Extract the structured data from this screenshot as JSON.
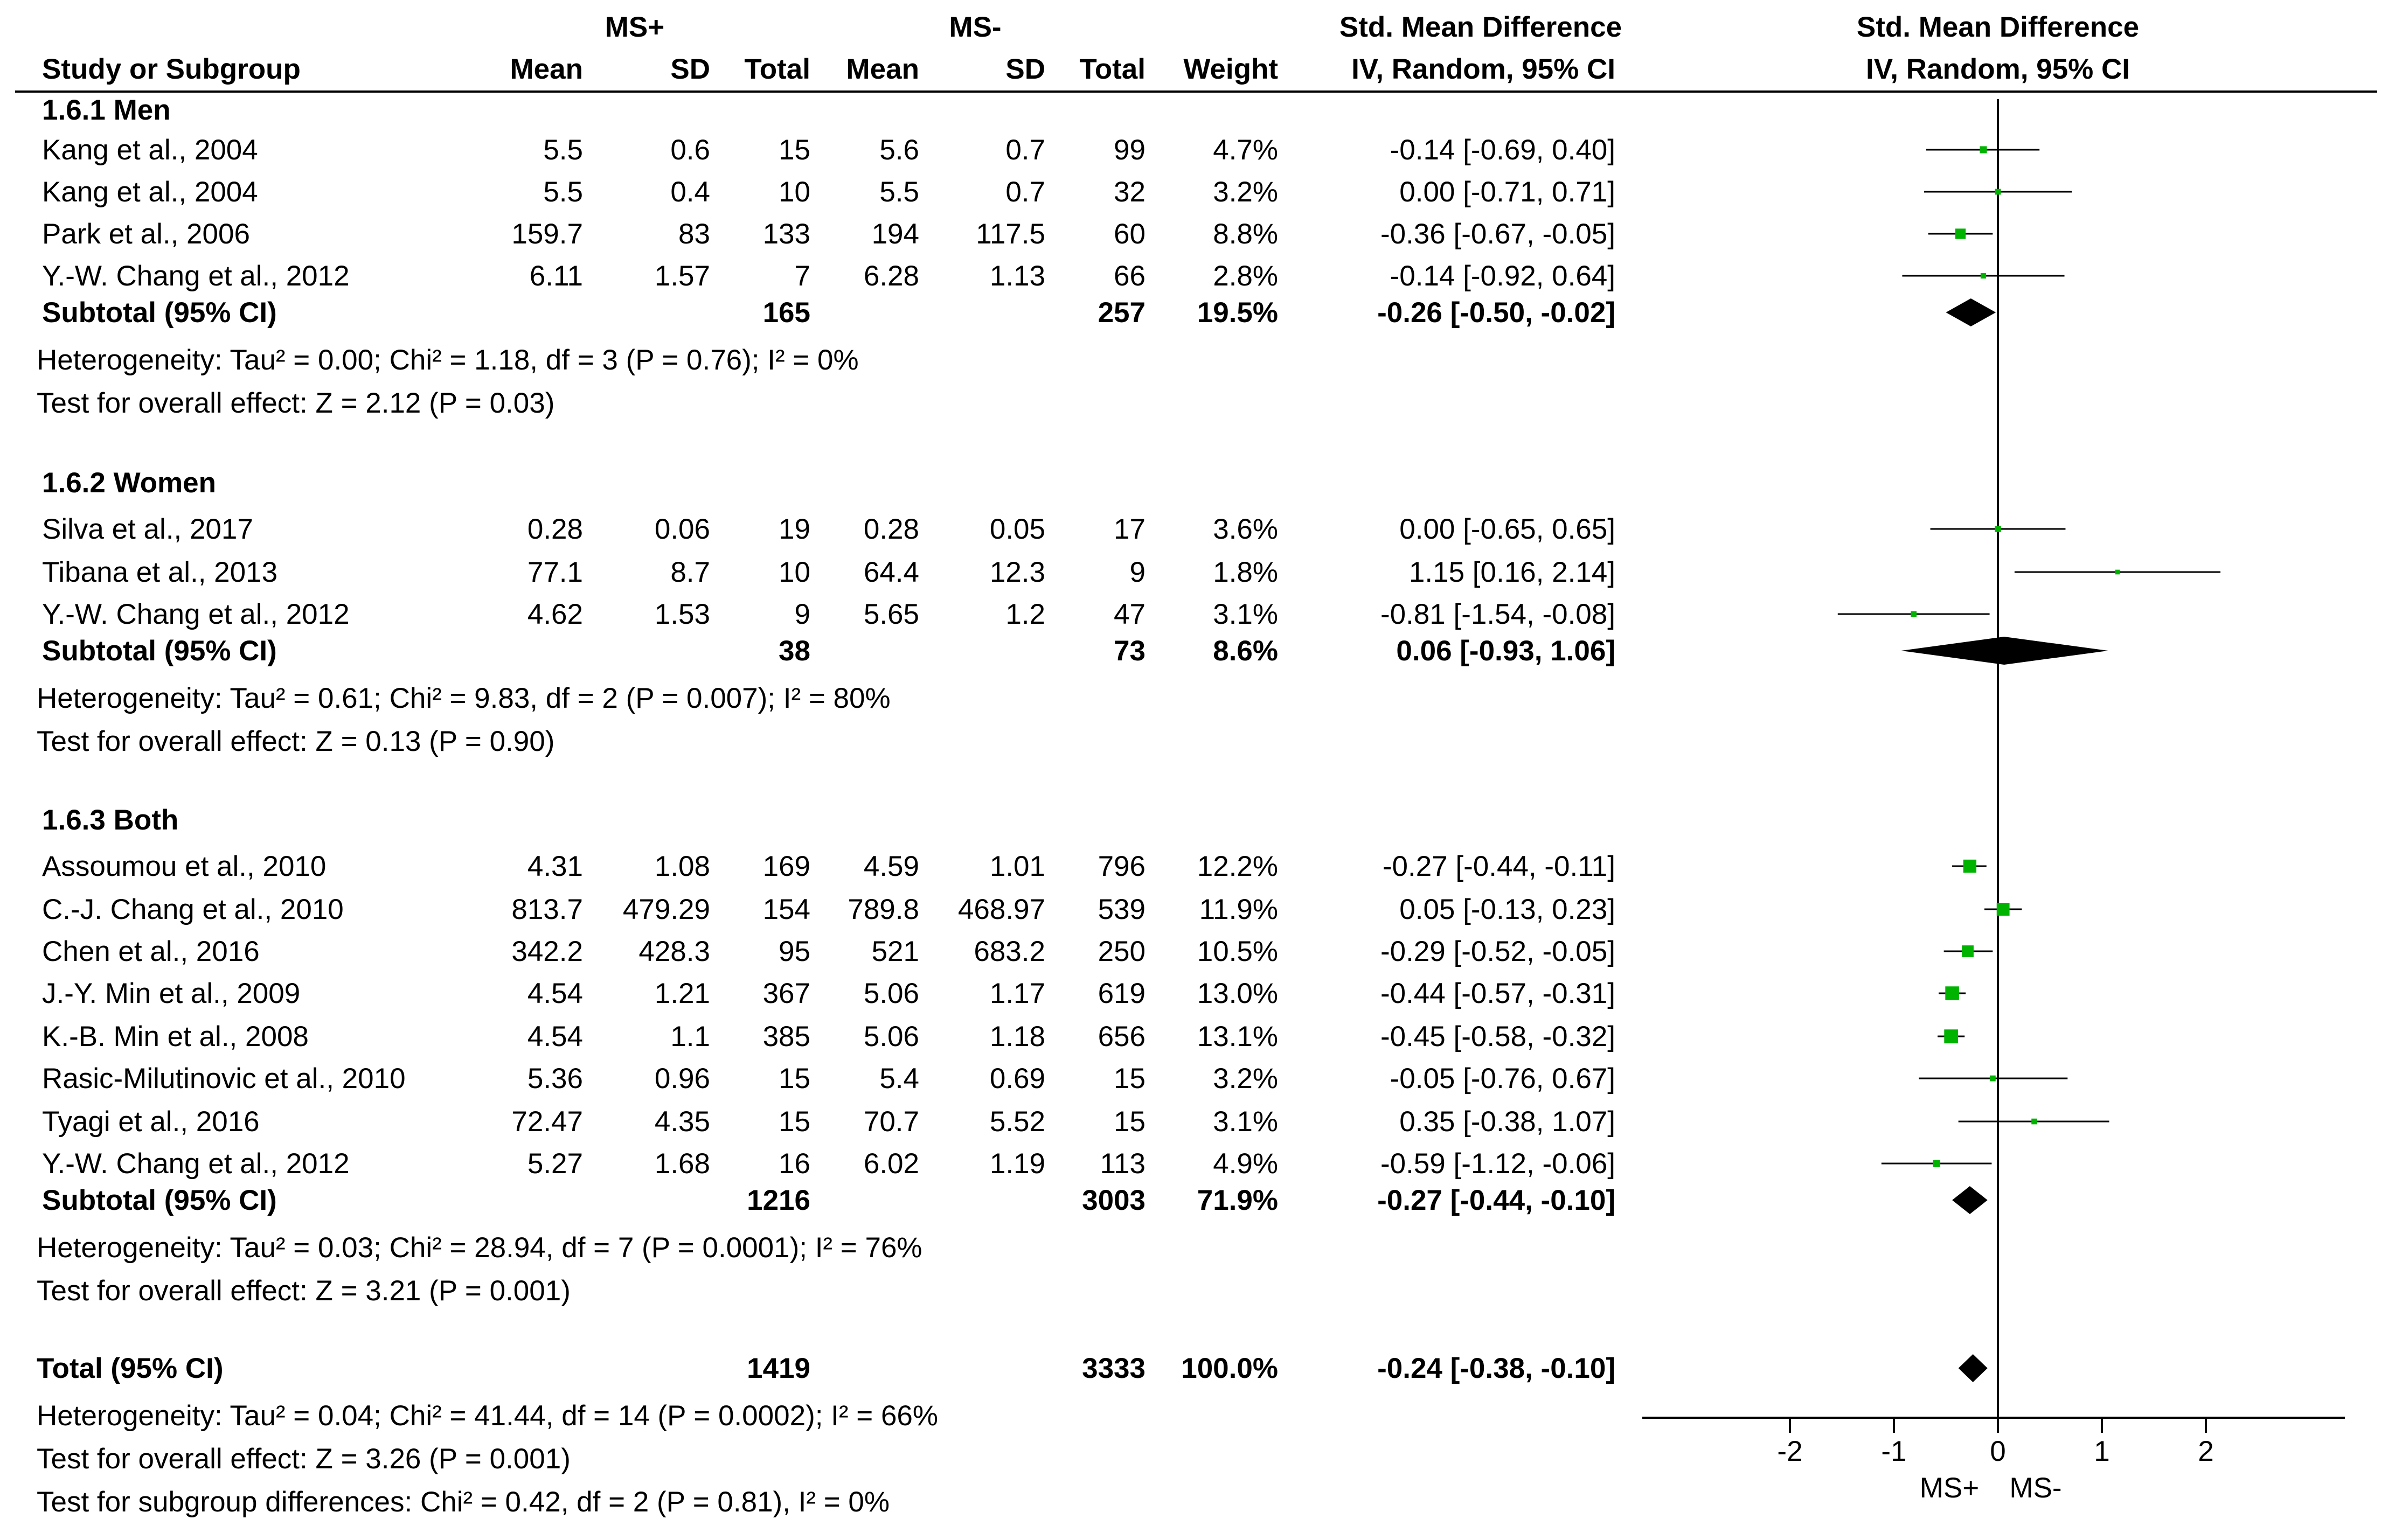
{
  "headers": {
    "group_ms_plus": "MS+",
    "group_ms_minus": "MS-",
    "effect_title": "Std. Mean Difference",
    "effect_method": "IV, Random, 95% CI",
    "plot_title": "Std. Mean Difference",
    "plot_method": "IV, Random, 95% CI",
    "study": "Study or Subgroup",
    "mean1": "Mean",
    "sd1": "SD",
    "total1": "Total",
    "mean2": "Mean",
    "sd2": "SD",
    "total2": "Total",
    "weight": "Weight"
  },
  "chart_data": {
    "type": "forest",
    "title": "Std. Mean Difference",
    "subtitle": "IV, Random, 95% CI",
    "xlim": [
      -3.5,
      3.5
    ],
    "xticks": [
      -2,
      -1,
      0,
      1,
      2
    ],
    "xtick_labels": [
      "-2",
      "-1",
      "0",
      "1",
      "2"
    ],
    "xlabel_left": "MS+",
    "xlabel_right": "MS-",
    "groups": [
      {
        "label": "1.6.1 Men",
        "studies": [
          {
            "study": "Kang et al., 2004",
            "mean1": "5.5",
            "sd1": "0.6",
            "total1": "15",
            "mean2": "5.6",
            "sd2": "0.7",
            "total2": "99",
            "weight": "4.7%",
            "ci_text": "-0.14 [-0.69, 0.40]",
            "est": -0.14,
            "lo": -0.69,
            "hi": 0.4,
            "w": 4.7
          },
          {
            "study": "Kang et al., 2004",
            "mean1": "5.5",
            "sd1": "0.4",
            "total1": "10",
            "mean2": "5.5",
            "sd2": "0.7",
            "total2": "32",
            "weight": "3.2%",
            "ci_text": "0.00 [-0.71, 0.71]",
            "est": 0.0,
            "lo": -0.71,
            "hi": 0.71,
            "w": 3.2
          },
          {
            "study": "Park et al., 2006",
            "mean1": "159.7",
            "sd1": "83",
            "total1": "133",
            "mean2": "194",
            "sd2": "117.5",
            "total2": "60",
            "weight": "8.8%",
            "ci_text": "-0.36 [-0.67, -0.05]",
            "est": -0.36,
            "lo": -0.67,
            "hi": -0.05,
            "w": 8.8
          },
          {
            "study": "Y.-W. Chang et al., 2012",
            "mean1": "6.11",
            "sd1": "1.57",
            "total1": "7",
            "mean2": "6.28",
            "sd2": "1.13",
            "total2": "66",
            "weight": "2.8%",
            "ci_text": "-0.14 [-0.92, 0.64]",
            "est": -0.14,
            "lo": -0.92,
            "hi": 0.64,
            "w": 2.8
          }
        ],
        "subtotal": {
          "label": "Subtotal (95% CI)",
          "total1": "165",
          "total2": "257",
          "weight": "19.5%",
          "ci_text": "-0.26 [-0.50, -0.02]",
          "est": -0.26,
          "lo": -0.5,
          "hi": -0.02
        },
        "heterogeneity": "Heterogeneity: Tau² = 0.00; Chi² = 1.18, df = 3 (P = 0.76); I² = 0%",
        "overall": "Test for overall effect: Z = 2.12 (P = 0.03)"
      },
      {
        "label": "1.6.2 Women",
        "studies": [
          {
            "study": "Silva et al., 2017",
            "mean1": "0.28",
            "sd1": "0.06",
            "total1": "19",
            "mean2": "0.28",
            "sd2": "0.05",
            "total2": "17",
            "weight": "3.6%",
            "ci_text": "0.00 [-0.65, 0.65]",
            "est": 0.0,
            "lo": -0.65,
            "hi": 0.65,
            "w": 3.6
          },
          {
            "study": "Tibana et al., 2013",
            "mean1": "77.1",
            "sd1": "8.7",
            "total1": "10",
            "mean2": "64.4",
            "sd2": "12.3",
            "total2": "9",
            "weight": "1.8%",
            "ci_text": "1.15 [0.16, 2.14]",
            "est": 1.15,
            "lo": 0.16,
            "hi": 2.14,
            "w": 1.8
          },
          {
            "study": "Y.-W. Chang et al., 2012",
            "mean1": "4.62",
            "sd1": "1.53",
            "total1": "9",
            "mean2": "5.65",
            "sd2": "1.2",
            "total2": "47",
            "weight": "3.1%",
            "ci_text": "-0.81 [-1.54, -0.08]",
            "est": -0.81,
            "lo": -1.54,
            "hi": -0.08,
            "w": 3.1
          }
        ],
        "subtotal": {
          "label": "Subtotal (95% CI)",
          "total1": "38",
          "total2": "73",
          "weight": "8.6%",
          "ci_text": "0.06 [-0.93, 1.06]",
          "est": 0.06,
          "lo": -0.93,
          "hi": 1.06
        },
        "heterogeneity": "Heterogeneity: Tau² = 0.61; Chi² = 9.83, df = 2 (P = 0.007); I² = 80%",
        "overall": "Test for overall effect: Z = 0.13 (P = 0.90)"
      },
      {
        "label": "1.6.3 Both",
        "studies": [
          {
            "study": "Assoumou et al., 2010",
            "mean1": "4.31",
            "sd1": "1.08",
            "total1": "169",
            "mean2": "4.59",
            "sd2": "1.01",
            "total2": "796",
            "weight": "12.2%",
            "ci_text": "-0.27 [-0.44, -0.11]",
            "est": -0.27,
            "lo": -0.44,
            "hi": -0.11,
            "w": 12.2
          },
          {
            "study": "C.-J. Chang et al., 2010",
            "mean1": "813.7",
            "sd1": "479.29",
            "total1": "154",
            "mean2": "789.8",
            "sd2": "468.97",
            "total2": "539",
            "weight": "11.9%",
            "ci_text": "0.05 [-0.13, 0.23]",
            "est": 0.05,
            "lo": -0.13,
            "hi": 0.23,
            "w": 11.9
          },
          {
            "study": "Chen et al., 2016",
            "mean1": "342.2",
            "sd1": "428.3",
            "total1": "95",
            "mean2": "521",
            "sd2": "683.2",
            "total2": "250",
            "weight": "10.5%",
            "ci_text": "-0.29 [-0.52, -0.05]",
            "est": -0.29,
            "lo": -0.52,
            "hi": -0.05,
            "w": 10.5
          },
          {
            "study": "J.-Y. Min et al., 2009",
            "mean1": "4.54",
            "sd1": "1.21",
            "total1": "367",
            "mean2": "5.06",
            "sd2": "1.17",
            "total2": "619",
            "weight": "13.0%",
            "ci_text": "-0.44 [-0.57, -0.31]",
            "est": -0.44,
            "lo": -0.57,
            "hi": -0.31,
            "w": 13.0
          },
          {
            "study": "K.-B. Min et al., 2008",
            "mean1": "4.54",
            "sd1": "1.1",
            "total1": "385",
            "mean2": "5.06",
            "sd2": "1.18",
            "total2": "656",
            "weight": "13.1%",
            "ci_text": "-0.45 [-0.58, -0.32]",
            "est": -0.45,
            "lo": -0.58,
            "hi": -0.32,
            "w": 13.1
          },
          {
            "study": "Rasic-Milutinovic et al., 2010",
            "mean1": "5.36",
            "sd1": "0.96",
            "total1": "15",
            "mean2": "5.4",
            "sd2": "0.69",
            "total2": "15",
            "weight": "3.2%",
            "ci_text": "-0.05 [-0.76, 0.67]",
            "est": -0.05,
            "lo": -0.76,
            "hi": 0.67,
            "w": 3.2
          },
          {
            "study": "Tyagi et al., 2016",
            "mean1": "72.47",
            "sd1": "4.35",
            "total1": "15",
            "mean2": "70.7",
            "sd2": "5.52",
            "total2": "15",
            "weight": "3.1%",
            "ci_text": "0.35 [-0.38, 1.07]",
            "est": 0.35,
            "lo": -0.38,
            "hi": 1.07,
            "w": 3.1
          },
          {
            "study": "Y.-W. Chang et al., 2012",
            "mean1": "5.27",
            "sd1": "1.68",
            "total1": "16",
            "mean2": "6.02",
            "sd2": "1.19",
            "total2": "113",
            "weight": "4.9%",
            "ci_text": "-0.59 [-1.12, -0.06]",
            "est": -0.59,
            "lo": -1.12,
            "hi": -0.06,
            "w": 4.9
          }
        ],
        "subtotal": {
          "label": "Subtotal (95% CI)",
          "total1": "1216",
          "total2": "3003",
          "weight": "71.9%",
          "ci_text": "-0.27 [-0.44, -0.10]",
          "est": -0.27,
          "lo": -0.44,
          "hi": -0.1
        },
        "heterogeneity": "Heterogeneity: Tau² = 0.03; Chi² = 28.94, df = 7 (P = 0.0001); I² = 76%",
        "overall": "Test for overall effect: Z = 3.21 (P = 0.001)"
      }
    ],
    "total": {
      "label": "Total (95% CI)",
      "total1": "1419",
      "total2": "3333",
      "weight": "100.0%",
      "ci_text": "-0.24 [-0.38, -0.10]",
      "est": -0.24,
      "lo": -0.38,
      "hi": -0.1
    },
    "footer": [
      "Heterogeneity: Tau² = 0.04; Chi² = 41.44, df = 14 (P = 0.0002); I² = 66%",
      "Test for overall effect: Z = 3.26 (P = 0.001)",
      "Test for subgroup differences: Chi² = 0.42, df = 2 (P = 0.81), I² = 0%"
    ]
  },
  "colors": {
    "marker": "#00b300",
    "line": "#000000",
    "diamond": "#000000"
  }
}
